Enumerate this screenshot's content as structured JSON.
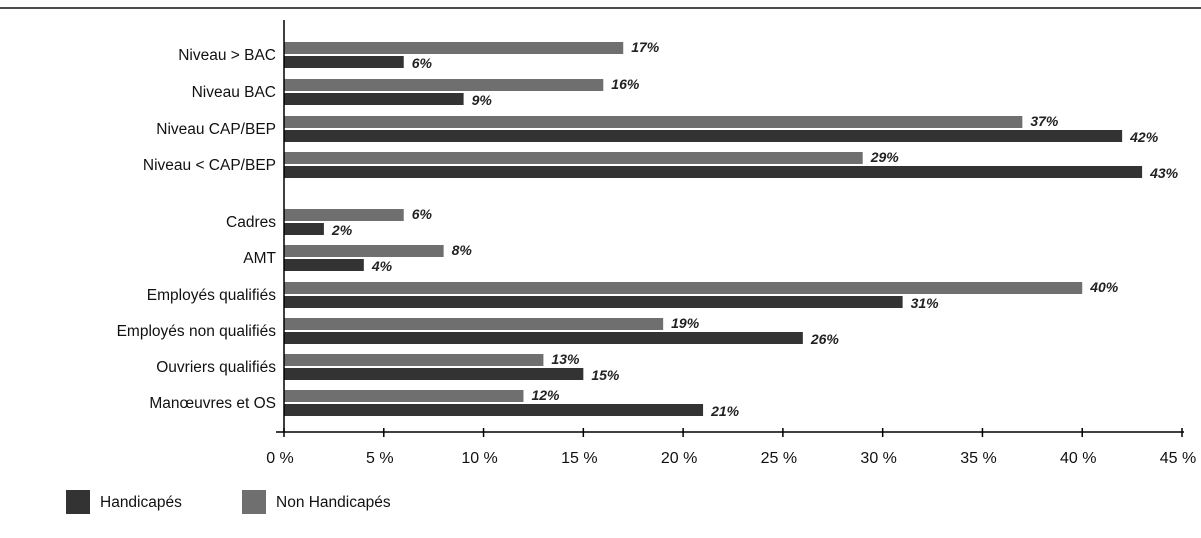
{
  "colors": {
    "handicapes": "#333333",
    "non_handicapes": "#6f6f6f",
    "axis": "#000000",
    "top_rule": "#111111"
  },
  "chart_data": {
    "type": "bar",
    "orientation": "horizontal",
    "categories": [
      "Niveau > BAC",
      "Niveau BAC",
      "Niveau CAP/BEP",
      "Niveau < CAP/BEP",
      "Cadres",
      "AMT",
      "Employés qualifiés",
      "Employés non qualifiés",
      "Ouvriers qualifiés",
      "Manœuvres et OS"
    ],
    "series": [
      {
        "name": "Non Handicapés",
        "values": [
          17,
          16,
          37,
          29,
          6,
          8,
          40,
          19,
          13,
          12
        ],
        "labels": [
          "17%",
          "16%",
          "37%",
          "29%",
          "6%",
          "8%",
          "40%",
          "19%",
          "13%",
          "12%"
        ]
      },
      {
        "name": "Handicapés",
        "values": [
          6,
          9,
          42,
          43,
          2,
          4,
          31,
          26,
          15,
          21
        ],
        "labels": [
          "6%",
          "9%",
          "42%",
          "43%",
          "2%",
          "4%",
          "31%",
          "26%",
          "15%",
          "21%"
        ]
      }
    ],
    "xlim": [
      0,
      45
    ],
    "xticks": [
      "0 %",
      "5 %",
      "10 %",
      "15 %",
      "20 %",
      "25 %",
      "30 %",
      "35 %",
      "40 %",
      "45 %"
    ],
    "xlabel": "",
    "ylabel": "",
    "grid": false,
    "legend": {
      "placement": "bottom-left",
      "entries": [
        "Handicapés",
        "Non Handicapés"
      ]
    }
  }
}
